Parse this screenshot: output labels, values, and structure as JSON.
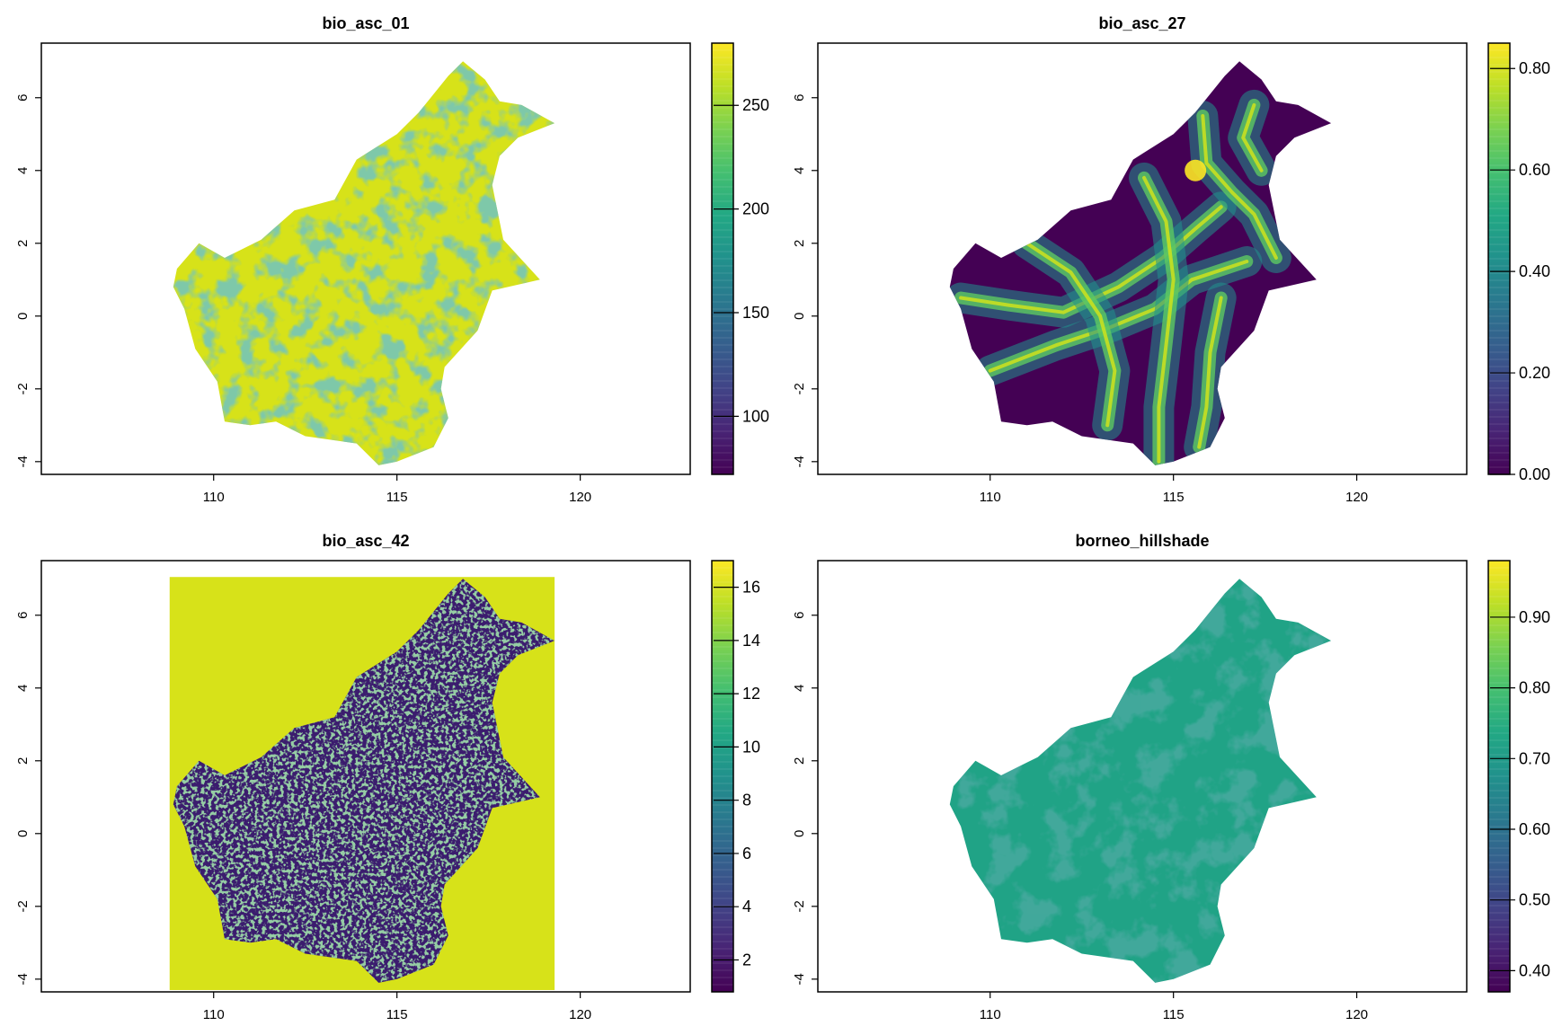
{
  "chart_data": [
    {
      "type": "heatmap",
      "title": "bio_asc_01",
      "x_ticks": [
        "110",
        "115",
        "120"
      ],
      "y_ticks": [
        "-4",
        "-2",
        "0",
        "2",
        "4",
        "6"
      ],
      "xlim": [
        105.3,
        123.0
      ],
      "ylim": [
        -4.35,
        7.5
      ],
      "legend": {
        "range": [
          72,
          280
        ],
        "ticks": [
          "100",
          "150",
          "200",
          "250"
        ],
        "tick_values": [
          100,
          150,
          200,
          250
        ]
      },
      "fill": "island",
      "dominant_value": 255,
      "colors": [
        "#d7e219",
        "#a8db34",
        "#21a685",
        "#2a788e"
      ]
    },
    {
      "type": "heatmap",
      "title": "bio_asc_27",
      "x_ticks": [
        "110",
        "115",
        "120"
      ],
      "y_ticks": [
        "-4",
        "-2",
        "0",
        "2",
        "4",
        "6"
      ],
      "xlim": [
        105.3,
        123.0
      ],
      "ylim": [
        -4.35,
        7.5
      ],
      "legend": {
        "range": [
          0.0,
          0.85
        ],
        "ticks": [
          "0.00",
          "0.20",
          "0.40",
          "0.60",
          "0.80"
        ],
        "tick_values": [
          0.0,
          0.2,
          0.4,
          0.6,
          0.8
        ]
      },
      "fill": "island",
      "dominant_value": 0.1,
      "colors": [
        "#440154",
        "#31688e",
        "#35b779",
        "#fde725"
      ]
    },
    {
      "type": "heatmap",
      "title": "bio_asc_42",
      "x_ticks": [
        "110",
        "115",
        "120"
      ],
      "y_ticks": [
        "-4",
        "-2",
        "0",
        "2",
        "4",
        "6"
      ],
      "xlim": [
        105.3,
        123.0
      ],
      "ylim": [
        -4.35,
        7.5
      ],
      "legend": {
        "range": [
          0.8,
          17.0
        ],
        "ticks": [
          "2",
          "4",
          "6",
          "8",
          "10",
          "12",
          "14",
          "16"
        ],
        "tick_values": [
          2,
          4,
          6,
          8,
          10,
          12,
          14,
          16
        ]
      },
      "fill": "island-on-rectangle",
      "background_extent": {
        "x": [
          108.8,
          119.3
        ],
        "y": [
          -4.3,
          7.05
        ]
      },
      "background_value": 16,
      "dominant_value": 1.5,
      "colors": [
        "#d7e219",
        "#3b1c6e",
        "#2e6f8e",
        "#35b779"
      ]
    },
    {
      "type": "heatmap",
      "title": "borneo_hillshade",
      "x_ticks": [
        "110",
        "115",
        "120"
      ],
      "y_ticks": [
        "-4",
        "-2",
        "0",
        "2",
        "4",
        "6"
      ],
      "xlim": [
        105.3,
        123.0
      ],
      "ylim": [
        -4.35,
        7.5
      ],
      "legend": {
        "range": [
          0.37,
          0.98
        ],
        "ticks": [
          "0.40",
          "0.50",
          "0.60",
          "0.70",
          "0.80",
          "0.90"
        ],
        "tick_values": [
          0.4,
          0.5,
          0.6,
          0.7,
          0.8,
          0.9
        ]
      },
      "fill": "island",
      "dominant_value": 0.71,
      "colors": [
        "#20a386",
        "#31688e",
        "#5ec962"
      ]
    }
  ],
  "island_outline": [
    [
      109.0,
      1.3
    ],
    [
      109.6,
      2.0
    ],
    [
      110.3,
      1.6
    ],
    [
      111.3,
      2.1
    ],
    [
      112.2,
      2.9
    ],
    [
      113.3,
      3.2
    ],
    [
      113.9,
      4.3
    ],
    [
      115.0,
      5.0
    ],
    [
      115.6,
      5.6
    ],
    [
      116.4,
      6.6
    ],
    [
      116.8,
      7.0
    ],
    [
      117.4,
      6.5
    ],
    [
      117.8,
      5.9
    ],
    [
      118.4,
      5.8
    ],
    [
      119.3,
      5.3
    ],
    [
      118.3,
      4.9
    ],
    [
      117.8,
      4.4
    ],
    [
      117.6,
      3.6
    ],
    [
      117.9,
      2.1
    ],
    [
      118.9,
      1.0
    ],
    [
      117.6,
      0.7
    ],
    [
      117.2,
      -0.4
    ],
    [
      116.3,
      -1.4
    ],
    [
      116.2,
      -2.0
    ],
    [
      116.4,
      -2.8
    ],
    [
      116.0,
      -3.6
    ],
    [
      115.0,
      -4.0
    ],
    [
      114.5,
      -4.1
    ],
    [
      113.9,
      -3.5
    ],
    [
      112.5,
      -3.3
    ],
    [
      111.7,
      -2.9
    ],
    [
      111.0,
      -3.0
    ],
    [
      110.3,
      -2.9
    ],
    [
      110.1,
      -1.8
    ],
    [
      109.5,
      -0.9
    ],
    [
      109.2,
      0.2
    ],
    [
      108.9,
      0.8
    ]
  ]
}
